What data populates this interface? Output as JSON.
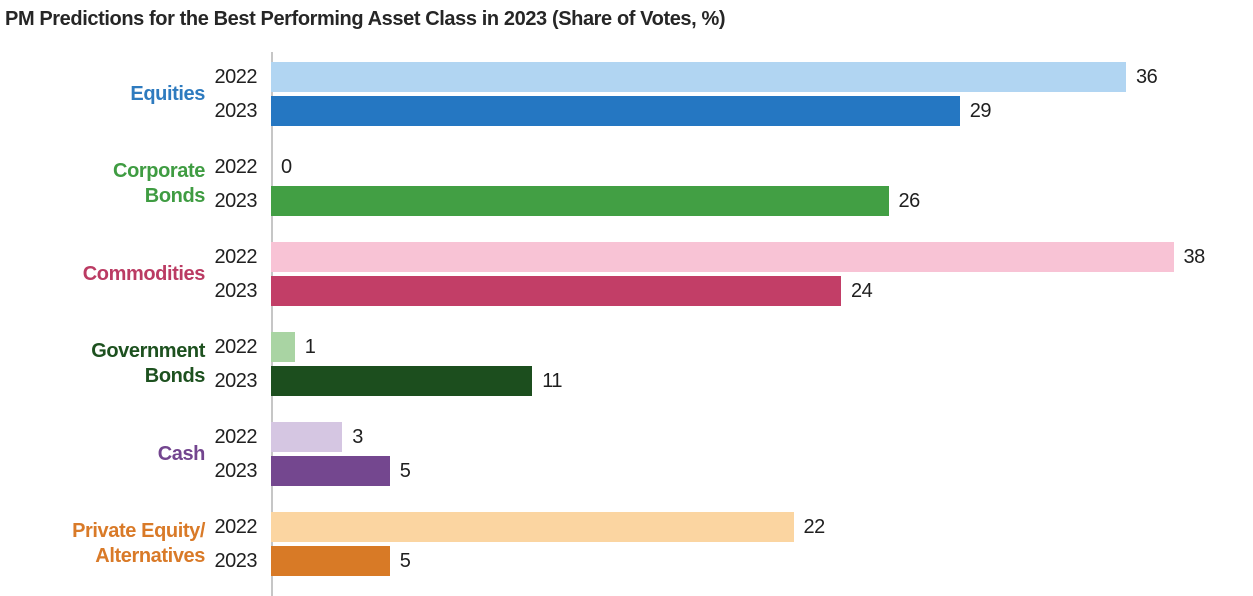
{
  "title": "PM Predictions for the Best Performing Asset Class in 2023 (Share of Votes, %)",
  "colors": {
    "axis_line": "#c6c6c6",
    "text": "#1f1f1f",
    "title_text": "#262626"
  },
  "chart_data": {
    "type": "bar",
    "orientation": "horizontal",
    "title": "PM Predictions for the Best Performing Asset Class in 2023 (Share of Votes, %)",
    "xlabel": "",
    "ylabel": "",
    "xlim": [
      0,
      40
    ],
    "grid": false,
    "legend_position": "none",
    "value_labels": "end-of-bar",
    "categories": [
      "Equities",
      "Corporate Bonds",
      "Commodities",
      "Government Bonds",
      "Cash",
      "Private Equity/Alternatives"
    ],
    "series": [
      {
        "name": "2022",
        "values": [
          36,
          0,
          38,
          1,
          3,
          22
        ]
      },
      {
        "name": "2023",
        "values": [
          29,
          26,
          24,
          11,
          5,
          5
        ]
      }
    ],
    "groups": [
      {
        "category": "Equities",
        "label_lines": [
          "Equities"
        ],
        "label_color": "#2e7bbf",
        "bars": [
          {
            "year": "2022",
            "value": 36,
            "color": "#b1d5f2"
          },
          {
            "year": "2023",
            "value": 29,
            "color": "#2577c2"
          }
        ]
      },
      {
        "category": "Corporate Bonds",
        "label_lines": [
          "Corporate",
          "Bonds"
        ],
        "label_color": "#3f9c42",
        "bars": [
          {
            "year": "2022",
            "value": 0,
            "color": "#429f44"
          },
          {
            "year": "2023",
            "value": 26,
            "color": "#429f44"
          }
        ]
      },
      {
        "category": "Commodities",
        "label_lines": [
          "Commodities"
        ],
        "label_color": "#bb3b63",
        "bars": [
          {
            "year": "2022",
            "value": 38,
            "color": "#f8c3d5"
          },
          {
            "year": "2023",
            "value": 24,
            "color": "#c23e67"
          }
        ]
      },
      {
        "category": "Government Bonds",
        "label_lines": [
          "Government",
          "Bonds"
        ],
        "label_color": "#1d511f",
        "bars": [
          {
            "year": "2022",
            "value": 1,
            "color": "#a9d4a3"
          },
          {
            "year": "2023",
            "value": 11,
            "color": "#1c4e1e"
          }
        ]
      },
      {
        "category": "Cash",
        "label_lines": [
          "Cash"
        ],
        "label_color": "#73458f",
        "bars": [
          {
            "year": "2022",
            "value": 3,
            "color": "#d5c6e2"
          },
          {
            "year": "2023",
            "value": 5,
            "color": "#74478f"
          }
        ]
      },
      {
        "category": "Private Equity/Alternatives",
        "label_lines": [
          "Private Equity/",
          "Alternatives"
        ],
        "label_color": "#d97a28",
        "bars": [
          {
            "year": "2022",
            "value": 22,
            "color": "#fbd5a1"
          },
          {
            "year": "2023",
            "value": 5,
            "color": "#d87a26"
          }
        ]
      }
    ]
  }
}
